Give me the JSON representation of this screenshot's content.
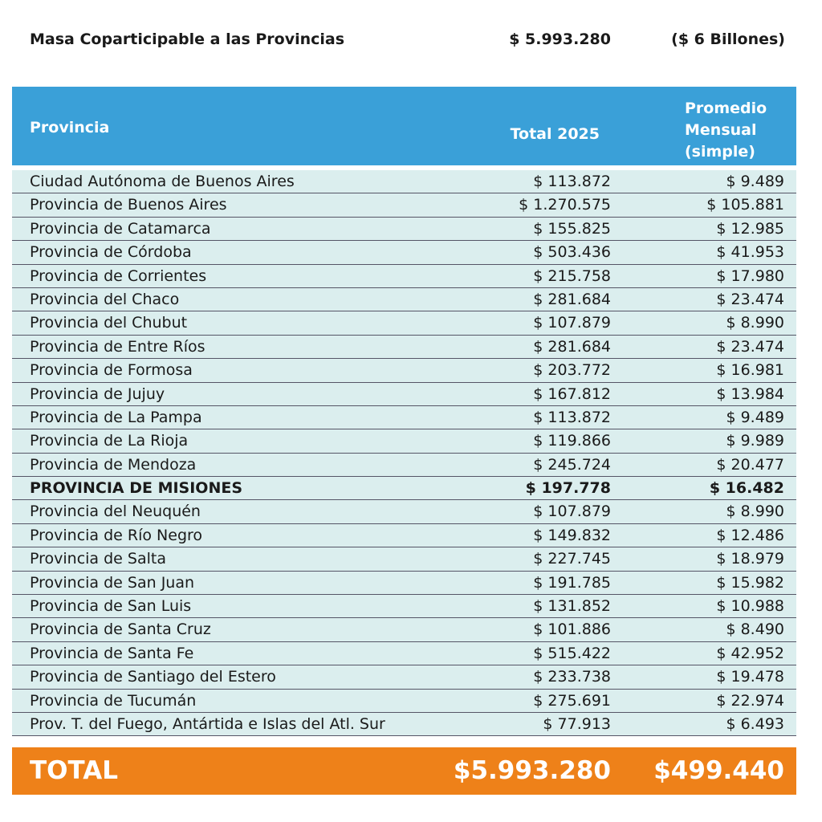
{
  "header": {
    "title": "Masa Coparticipable a las Provincias",
    "amount": "$ 5.993.280",
    "note": "($ 6 Billones)"
  },
  "columns": {
    "province": "Provincia",
    "total": "Total 2025",
    "monthly_1": "Promedio",
    "monthly_2": "Mensual",
    "monthly_3": "(simple)"
  },
  "rows": [
    {
      "name": "Ciudad Autónoma de Buenos Aires",
      "total": "$ 113.872",
      "monthly": "$ 9.489"
    },
    {
      "name": "Provincia de Buenos Aires",
      "total": "$ 1.270.575",
      "monthly": "$ 105.881"
    },
    {
      "name": "Provincia de Catamarca",
      "total": "$ 155.825",
      "monthly": "$ 12.985"
    },
    {
      "name": "Provincia de Córdoba",
      "total": "$ 503.436",
      "monthly": "$ 41.953"
    },
    {
      "name": "Provincia de Corrientes",
      "total": "$ 215.758",
      "monthly": "$ 17.980"
    },
    {
      "name": "Provincia del Chaco",
      "total": "$ 281.684",
      "monthly": "$ 23.474"
    },
    {
      "name": "Provincia del Chubut",
      "total": "$ 107.879",
      "monthly": "$ 8.990"
    },
    {
      "name": "Provincia de Entre Ríos",
      "total": "$ 281.684",
      "monthly": "$ 23.474"
    },
    {
      "name": "Provincia de Formosa",
      "total": "$ 203.772",
      "monthly": "$ 16.981"
    },
    {
      "name": "Provincia de Jujuy",
      "total": "$ 167.812",
      "monthly": "$ 13.984"
    },
    {
      "name": "Provincia de La Pampa",
      "total": "$ 113.872",
      "monthly": "$ 9.489"
    },
    {
      "name": "Provincia de La Rioja",
      "total": "$ 119.866",
      "monthly": "$ 9.989"
    },
    {
      "name": "Provincia de Mendoza",
      "total": "$ 245.724",
      "monthly": "$ 20.477"
    },
    {
      "name": "PROVINCIA DE MISIONES",
      "total": "$ 197.778",
      "monthly": "$ 16.482",
      "highlight": true
    },
    {
      "name": "Provincia del Neuquén",
      "total": "$ 107.879",
      "monthly": "$ 8.990"
    },
    {
      "name": "Provincia de Río Negro",
      "total": "$ 149.832",
      "monthly": "$ 12.486"
    },
    {
      "name": "Provincia de Salta",
      "total": "$ 227.745",
      "monthly": "$ 18.979"
    },
    {
      "name": "Provincia de San Juan",
      "total": "$ 191.785",
      "monthly": "$ 15.982"
    },
    {
      "name": "Provincia de San Luis",
      "total": "$ 131.852",
      "monthly": "$ 10.988"
    },
    {
      "name": "Provincia de Santa Cruz",
      "total": "$ 101.886",
      "monthly": "$ 8.490"
    },
    {
      "name": "Provincia de Santa Fe",
      "total": "$ 515.422",
      "monthly": "$ 42.952"
    },
    {
      "name": "Provincia de Santiago del Estero",
      "total": "$ 233.738",
      "monthly": "$ 19.478"
    },
    {
      "name": "Provincia de Tucumán",
      "total": "$ 275.691",
      "monthly": "$ 22.974"
    },
    {
      "name": "Prov. T. del Fuego, Antártida e Islas del Atl. Sur",
      "total": "$ 77.913",
      "monthly": "$ 6.493"
    }
  ],
  "total": {
    "label": "TOTAL",
    "total": "$5.993.280",
    "monthly": "$499.440"
  },
  "colors": {
    "header": "#3aa0d8",
    "rows": "#dbeeee",
    "total": "#ee8119"
  }
}
